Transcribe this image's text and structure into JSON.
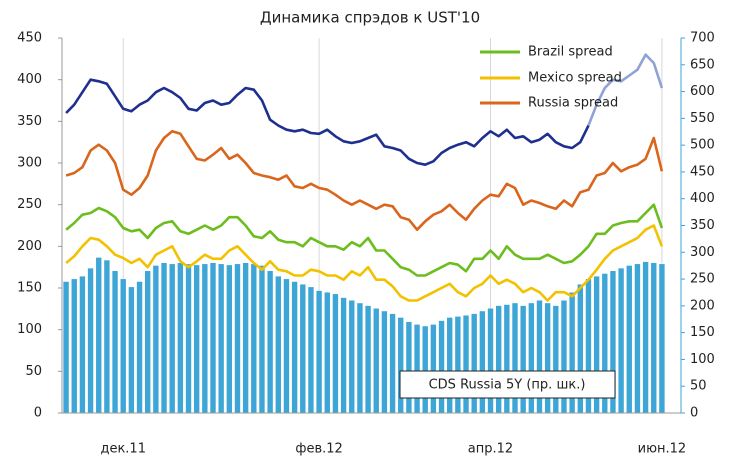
{
  "chart_data": {
    "type": "line",
    "title": "Динамика спрэдов к UST'10",
    "categories": [
      null,
      null,
      null,
      null,
      null,
      null,
      null,
      "дек.11",
      null,
      null,
      null,
      null,
      null,
      null,
      null,
      null,
      null,
      null,
      null,
      null,
      null,
      null,
      null,
      null,
      null,
      null,
      null,
      null,
      null,
      null,
      null,
      "фев.12",
      null,
      null,
      null,
      null,
      null,
      null,
      null,
      null,
      null,
      null,
      null,
      null,
      null,
      null,
      null,
      null,
      null,
      null,
      null,
      null,
      "апр.12",
      null,
      null,
      null,
      null,
      null,
      null,
      null,
      null,
      null,
      null,
      null,
      null,
      null,
      null,
      null,
      null,
      null,
      null,
      null,
      null,
      "июн.12"
    ],
    "series": [
      {
        "name": "CDS Russia 5Y (пр. шк.)",
        "type": "bar",
        "axis": "y2",
        "color": "#3ea6d6",
        "values": [
          245,
          250,
          255,
          270,
          290,
          285,
          265,
          250,
          235,
          245,
          265,
          275,
          280,
          278,
          280,
          278,
          276,
          278,
          280,
          278,
          276,
          278,
          280,
          278,
          275,
          265,
          255,
          250,
          245,
          240,
          235,
          228,
          225,
          222,
          215,
          210,
          205,
          200,
          195,
          190,
          185,
          178,
          170,
          165,
          162,
          165,
          172,
          178,
          180,
          182,
          185,
          190,
          195,
          200,
          202,
          205,
          200,
          205,
          210,
          205,
          200,
          210,
          225,
          240,
          250,
          255,
          260,
          265,
          270,
          275,
          278,
          282,
          280,
          278
        ]
      },
      {
        "color": "#1f2f8f",
        "values": [
          360,
          370,
          385,
          400,
          398,
          395,
          380,
          365,
          362,
          370,
          375,
          385,
          390,
          385,
          378,
          365,
          363,
          372,
          375,
          370,
          372,
          382,
          390,
          388,
          375,
          352,
          345,
          340,
          338,
          340,
          336,
          335,
          340,
          332,
          326,
          324,
          326,
          330,
          334,
          320,
          318,
          315,
          305,
          300,
          298,
          302,
          312,
          318,
          322,
          325,
          320,
          330,
          338,
          332,
          340,
          330,
          332,
          325,
          328,
          335,
          325,
          320,
          318,
          325,
          345,
          null,
          null,
          null,
          null,
          null,
          null,
          null,
          null,
          null
        ]
      },
      {
        "color": "#8ea2d6",
        "values": [
          null,
          null,
          null,
          null,
          null,
          null,
          null,
          null,
          null,
          null,
          null,
          null,
          null,
          null,
          null,
          null,
          null,
          null,
          null,
          null,
          null,
          null,
          null,
          null,
          null,
          null,
          null,
          null,
          null,
          null,
          null,
          null,
          null,
          null,
          null,
          null,
          null,
          null,
          null,
          null,
          null,
          null,
          null,
          null,
          null,
          null,
          null,
          null,
          null,
          null,
          null,
          null,
          null,
          null,
          null,
          null,
          null,
          null,
          null,
          null,
          null,
          null,
          null,
          null,
          345,
          370,
          390,
          400,
          398,
          405,
          412,
          430,
          420,
          390
        ]
      },
      {
        "name": "Brazil spread",
        "color": "#6cbd1e",
        "values": [
          220,
          228,
          238,
          240,
          246,
          242,
          235,
          222,
          218,
          220,
          210,
          222,
          228,
          230,
          218,
          215,
          220,
          225,
          220,
          225,
          235,
          235,
          225,
          212,
          210,
          218,
          208,
          205,
          205,
          200,
          210,
          205,
          200,
          200,
          196,
          205,
          200,
          210,
          195,
          195,
          185,
          175,
          172,
          165,
          165,
          170,
          175,
          180,
          178,
          170,
          185,
          185,
          195,
          185,
          200,
          190,
          185,
          185,
          185,
          190,
          185,
          180,
          182,
          190,
          200,
          215,
          215,
          225,
          228,
          230,
          230,
          240,
          250,
          222
        ]
      },
      {
        "name": "Mexico spread",
        "color": "#f2c200",
        "values": [
          180,
          188,
          200,
          210,
          208,
          200,
          190,
          186,
          180,
          185,
          175,
          190,
          195,
          200,
          182,
          175,
          182,
          190,
          185,
          185,
          195,
          200,
          190,
          180,
          172,
          182,
          172,
          170,
          165,
          165,
          172,
          170,
          165,
          165,
          160,
          170,
          165,
          175,
          160,
          160,
          152,
          140,
          135,
          135,
          140,
          145,
          150,
          155,
          145,
          140,
          150,
          155,
          165,
          155,
          160,
          155,
          145,
          150,
          145,
          135,
          145,
          145,
          140,
          150,
          160,
          172,
          185,
          195,
          200,
          205,
          210,
          220,
          225,
          200
        ]
      },
      {
        "name": "Russia spread",
        "color": "#d9661c",
        "values": [
          285,
          288,
          295,
          315,
          322,
          315,
          300,
          268,
          262,
          270,
          285,
          315,
          330,
          338,
          335,
          320,
          305,
          303,
          310,
          318,
          305,
          310,
          300,
          288,
          285,
          283,
          280,
          285,
          272,
          270,
          275,
          270,
          268,
          262,
          255,
          250,
          255,
          250,
          245,
          250,
          248,
          235,
          232,
          220,
          230,
          238,
          242,
          250,
          240,
          232,
          245,
          255,
          262,
          260,
          275,
          270,
          250,
          255,
          252,
          248,
          245,
          255,
          248,
          265,
          268,
          285,
          288,
          300,
          290,
          295,
          298,
          305,
          330,
          290
        ]
      }
    ],
    "ylim": [
      0,
      450
    ],
    "yticks": [
      0,
      50,
      100,
      150,
      200,
      250,
      300,
      350,
      400,
      450
    ],
    "y2lim": [
      0,
      700
    ],
    "y2ticks": [
      0,
      50,
      100,
      150,
      200,
      250,
      300,
      350,
      400,
      450,
      500,
      550,
      600,
      650,
      700
    ],
    "grid": "x"
  }
}
